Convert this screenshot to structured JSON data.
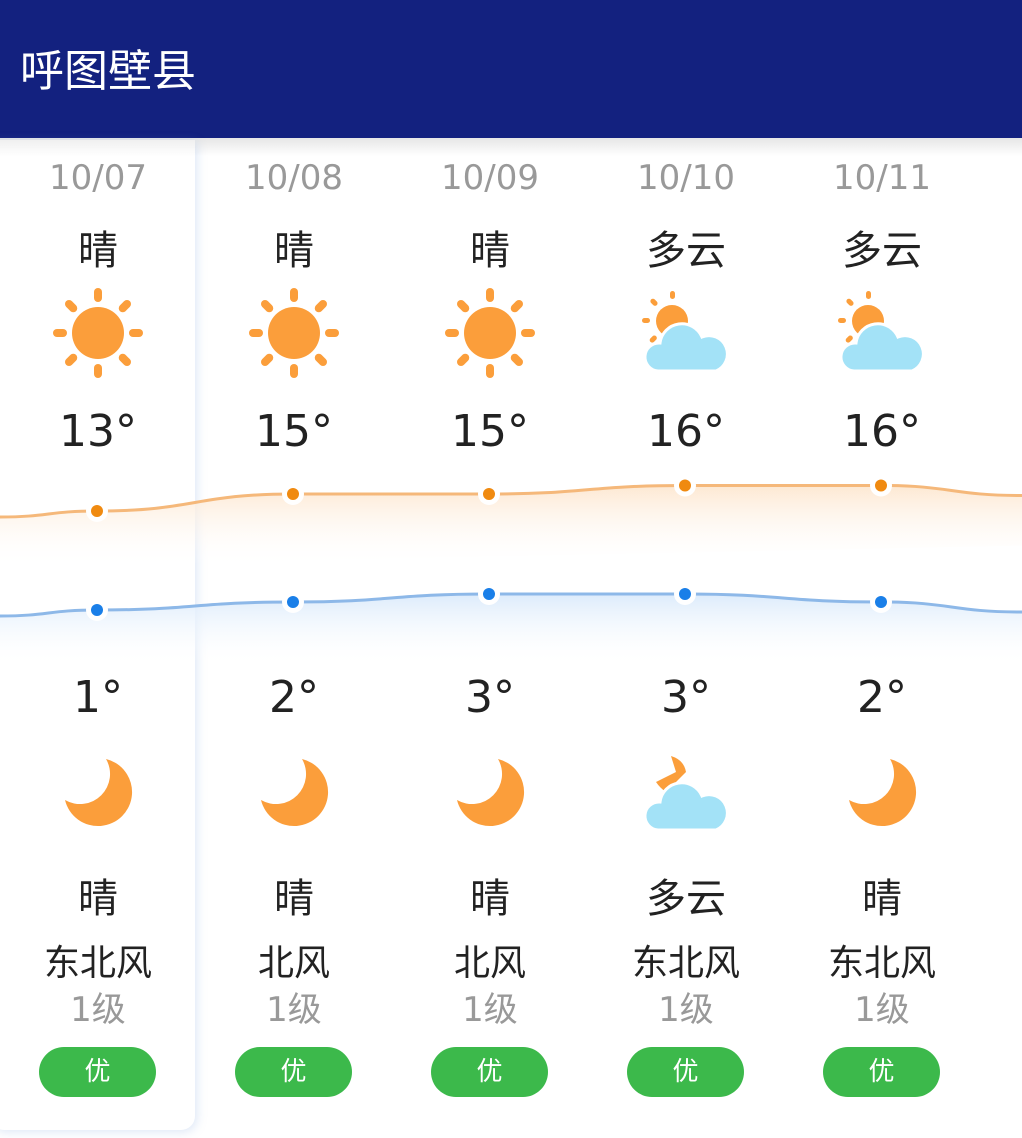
{
  "header": {
    "title": "呼图壁县"
  },
  "colors": {
    "header_bg": "#13217f",
    "high_line": "#f5b87a",
    "high_dot": "#f08a10",
    "low_line": "#8db8e8",
    "low_dot": "#1a7fe8",
    "aqi_good": "#3cb94b",
    "sun": "#fb9e3b",
    "cloud": "#a3e2f7"
  },
  "days": [
    {
      "date": "10/07",
      "day_cond": "晴",
      "day_icon": "sun-icon",
      "high": 13,
      "high_label": "13°",
      "low": 1,
      "low_label": "1°",
      "night_icon": "moon-icon",
      "night_cond": "晴",
      "wind": "东北风",
      "level": "1级",
      "aqi": "优"
    },
    {
      "date": "10/08",
      "day_cond": "晴",
      "day_icon": "sun-icon",
      "high": 15,
      "high_label": "15°",
      "low": 2,
      "low_label": "2°",
      "night_icon": "moon-icon",
      "night_cond": "晴",
      "wind": "北风",
      "level": "1级",
      "aqi": "优"
    },
    {
      "date": "10/09",
      "day_cond": "晴",
      "day_icon": "sun-icon",
      "high": 15,
      "high_label": "15°",
      "low": 3,
      "low_label": "3°",
      "night_icon": "moon-icon",
      "night_cond": "晴",
      "wind": "北风",
      "level": "1级",
      "aqi": "优"
    },
    {
      "date": "10/10",
      "day_cond": "多云",
      "day_icon": "partly-cloudy-icon",
      "high": 16,
      "high_label": "16°",
      "low": 3,
      "low_label": "3°",
      "night_icon": "partly-cloudy-night-icon",
      "night_cond": "多云",
      "wind": "东北风",
      "level": "1级",
      "aqi": "优"
    },
    {
      "date": "10/11",
      "day_cond": "多云",
      "day_icon": "partly-cloudy-icon",
      "high": 16,
      "high_label": "16°",
      "low": 2,
      "low_label": "2°",
      "night_icon": "moon-icon",
      "night_cond": "晴",
      "wind": "东北风",
      "level": "1级",
      "aqi": "优"
    }
  ]
}
